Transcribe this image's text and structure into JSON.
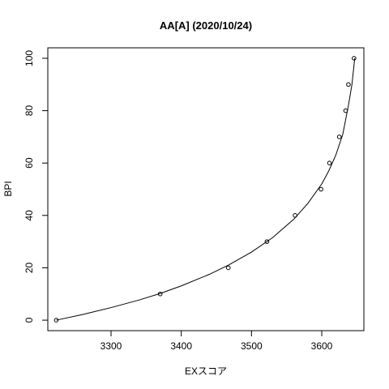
{
  "chart_data": {
    "type": "scatter",
    "title": "AA[A] (2020/10/24)",
    "xlabel": "EXスコア",
    "ylabel": "BPI",
    "xlim": [
      3210,
      3660
    ],
    "ylim": [
      -4,
      104
    ],
    "x_ticks": [
      3300,
      3400,
      3500,
      3600
    ],
    "y_ticks": [
      0,
      20,
      40,
      60,
      80,
      100
    ],
    "grid": false,
    "legend": "none",
    "points": [
      {
        "x": 3222,
        "y": 0
      },
      {
        "x": 3370,
        "y": 10
      },
      {
        "x": 3467,
        "y": 20
      },
      {
        "x": 3522,
        "y": 30
      },
      {
        "x": 3562,
        "y": 40
      },
      {
        "x": 3599,
        "y": 50
      },
      {
        "x": 3611,
        "y": 60
      },
      {
        "x": 3625,
        "y": 70
      },
      {
        "x": 3634,
        "y": 80
      },
      {
        "x": 3638,
        "y": 90
      },
      {
        "x": 3646,
        "y": 100
      }
    ],
    "fit_curve": {
      "type": "line",
      "points": [
        {
          "x": 3222,
          "y": 0
        },
        {
          "x": 3260,
          "y": 2.2
        },
        {
          "x": 3300,
          "y": 4.8
        },
        {
          "x": 3340,
          "y": 7.7
        },
        {
          "x": 3370,
          "y": 10.2
        },
        {
          "x": 3400,
          "y": 13.1
        },
        {
          "x": 3440,
          "y": 17.5
        },
        {
          "x": 3467,
          "y": 21
        },
        {
          "x": 3500,
          "y": 26
        },
        {
          "x": 3530,
          "y": 31.5
        },
        {
          "x": 3560,
          "y": 38.5
        },
        {
          "x": 3580,
          "y": 44.5
        },
        {
          "x": 3600,
          "y": 52
        },
        {
          "x": 3610,
          "y": 57
        },
        {
          "x": 3620,
          "y": 63
        },
        {
          "x": 3630,
          "y": 71
        },
        {
          "x": 3638,
          "y": 82
        },
        {
          "x": 3643,
          "y": 90
        },
        {
          "x": 3647,
          "y": 100
        }
      ]
    },
    "colors": {
      "line": "#000000",
      "point": "#000000",
      "background": "#ffffff"
    }
  }
}
